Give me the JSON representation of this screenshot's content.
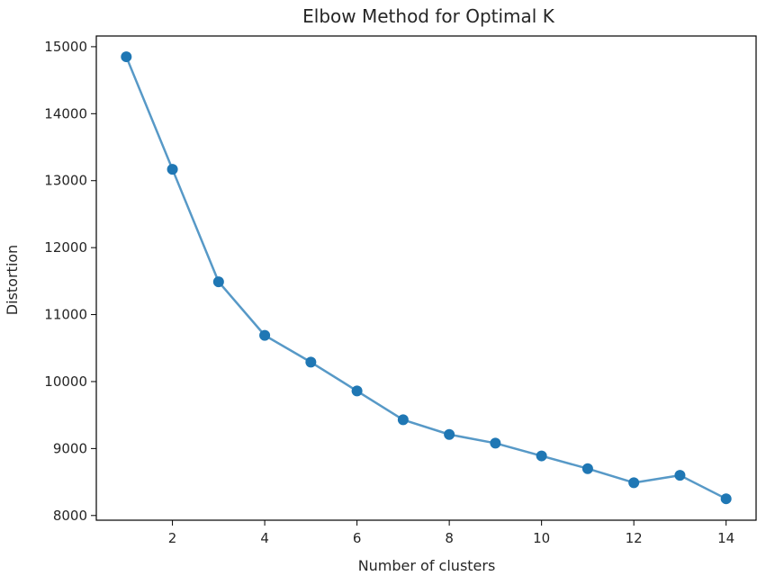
{
  "chart_data": {
    "type": "line",
    "title": "Elbow Method for Optimal K",
    "xlabel": "Number of clusters",
    "ylabel": "Distortion",
    "x": [
      1,
      2,
      3,
      4,
      5,
      6,
      7,
      8,
      9,
      10,
      11,
      12,
      13,
      14
    ],
    "series": [
      {
        "values": [
          14850,
          13170,
          11490,
          10690,
          10290,
          9860,
          9430,
          9210,
          9080,
          8890,
          8700,
          8490,
          8600,
          8250
        ],
        "color": "#1f77b4",
        "marker": "circle"
      }
    ],
    "xlim": [
      0.35,
      14.65
    ],
    "ylim": [
      7930,
      15160
    ],
    "xticks": [
      2,
      4,
      6,
      8,
      10,
      12,
      14
    ],
    "yticks": [
      8000,
      9000,
      10000,
      11000,
      12000,
      13000,
      14000,
      15000
    ],
    "grid": false,
    "legend": "none"
  }
}
